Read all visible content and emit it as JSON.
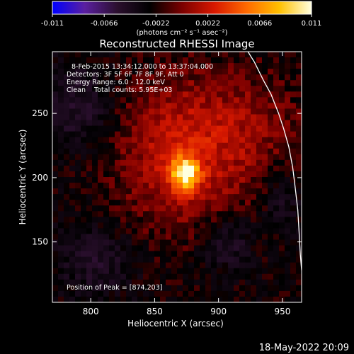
{
  "chart_data": {
    "type": "heatmap",
    "title": "Reconstructed RHESSI Image",
    "colorbar": {
      "ticks": [
        "-0.011",
        "-0.0066",
        "-0.0022",
        "0.0022",
        "0.0066",
        "0.011"
      ],
      "tick_values": [
        -0.011,
        -0.0066,
        -0.0022,
        0.0022,
        0.0066,
        0.011
      ],
      "range": [
        -0.011,
        0.011
      ],
      "label": "(photons cm⁻² s⁻¹ asec⁻²)",
      "colors": [
        "#0000ff",
        "#5a1fa0",
        "#2b0f2e",
        "#000000",
        "#7a0000",
        "#d81800",
        "#ff6a00",
        "#ffc000",
        "#ffffe0"
      ]
    },
    "info_lines": [
      "8-Feb-2015 13:34:12.000 to 13:37:04.000",
      "Detectors: 3F 5F 6F 7F 8F 9F, Att 0",
      "Energy Range: 6.0 - 12.0 keV",
      "Clean    Total counts: 5.95E+03"
    ],
    "peak_text": "Position of Peak = [874,203]",
    "peak": [
      874,
      203
    ],
    "xlabel": "Heliocentric X (arcsec)",
    "ylabel": "Heliocentric Y (arcsec)",
    "xlim": [
      770,
      965
    ],
    "ylim": [
      103,
      298
    ],
    "xticks": [
      800,
      850,
      900,
      950
    ],
    "yticks": [
      150,
      200,
      250
    ],
    "limb_curve": [
      [
        923,
        298
      ],
      [
        928,
        290
      ],
      [
        935,
        276
      ],
      [
        941,
        265
      ],
      [
        947,
        250
      ],
      [
        951,
        238
      ],
      [
        955,
        224
      ],
      [
        958,
        208
      ],
      [
        960,
        192
      ],
      [
        962,
        175
      ],
      [
        963,
        158
      ],
      [
        964,
        140
      ],
      [
        965,
        128
      ]
    ],
    "timestamp": "18-May-2022 20:09"
  }
}
